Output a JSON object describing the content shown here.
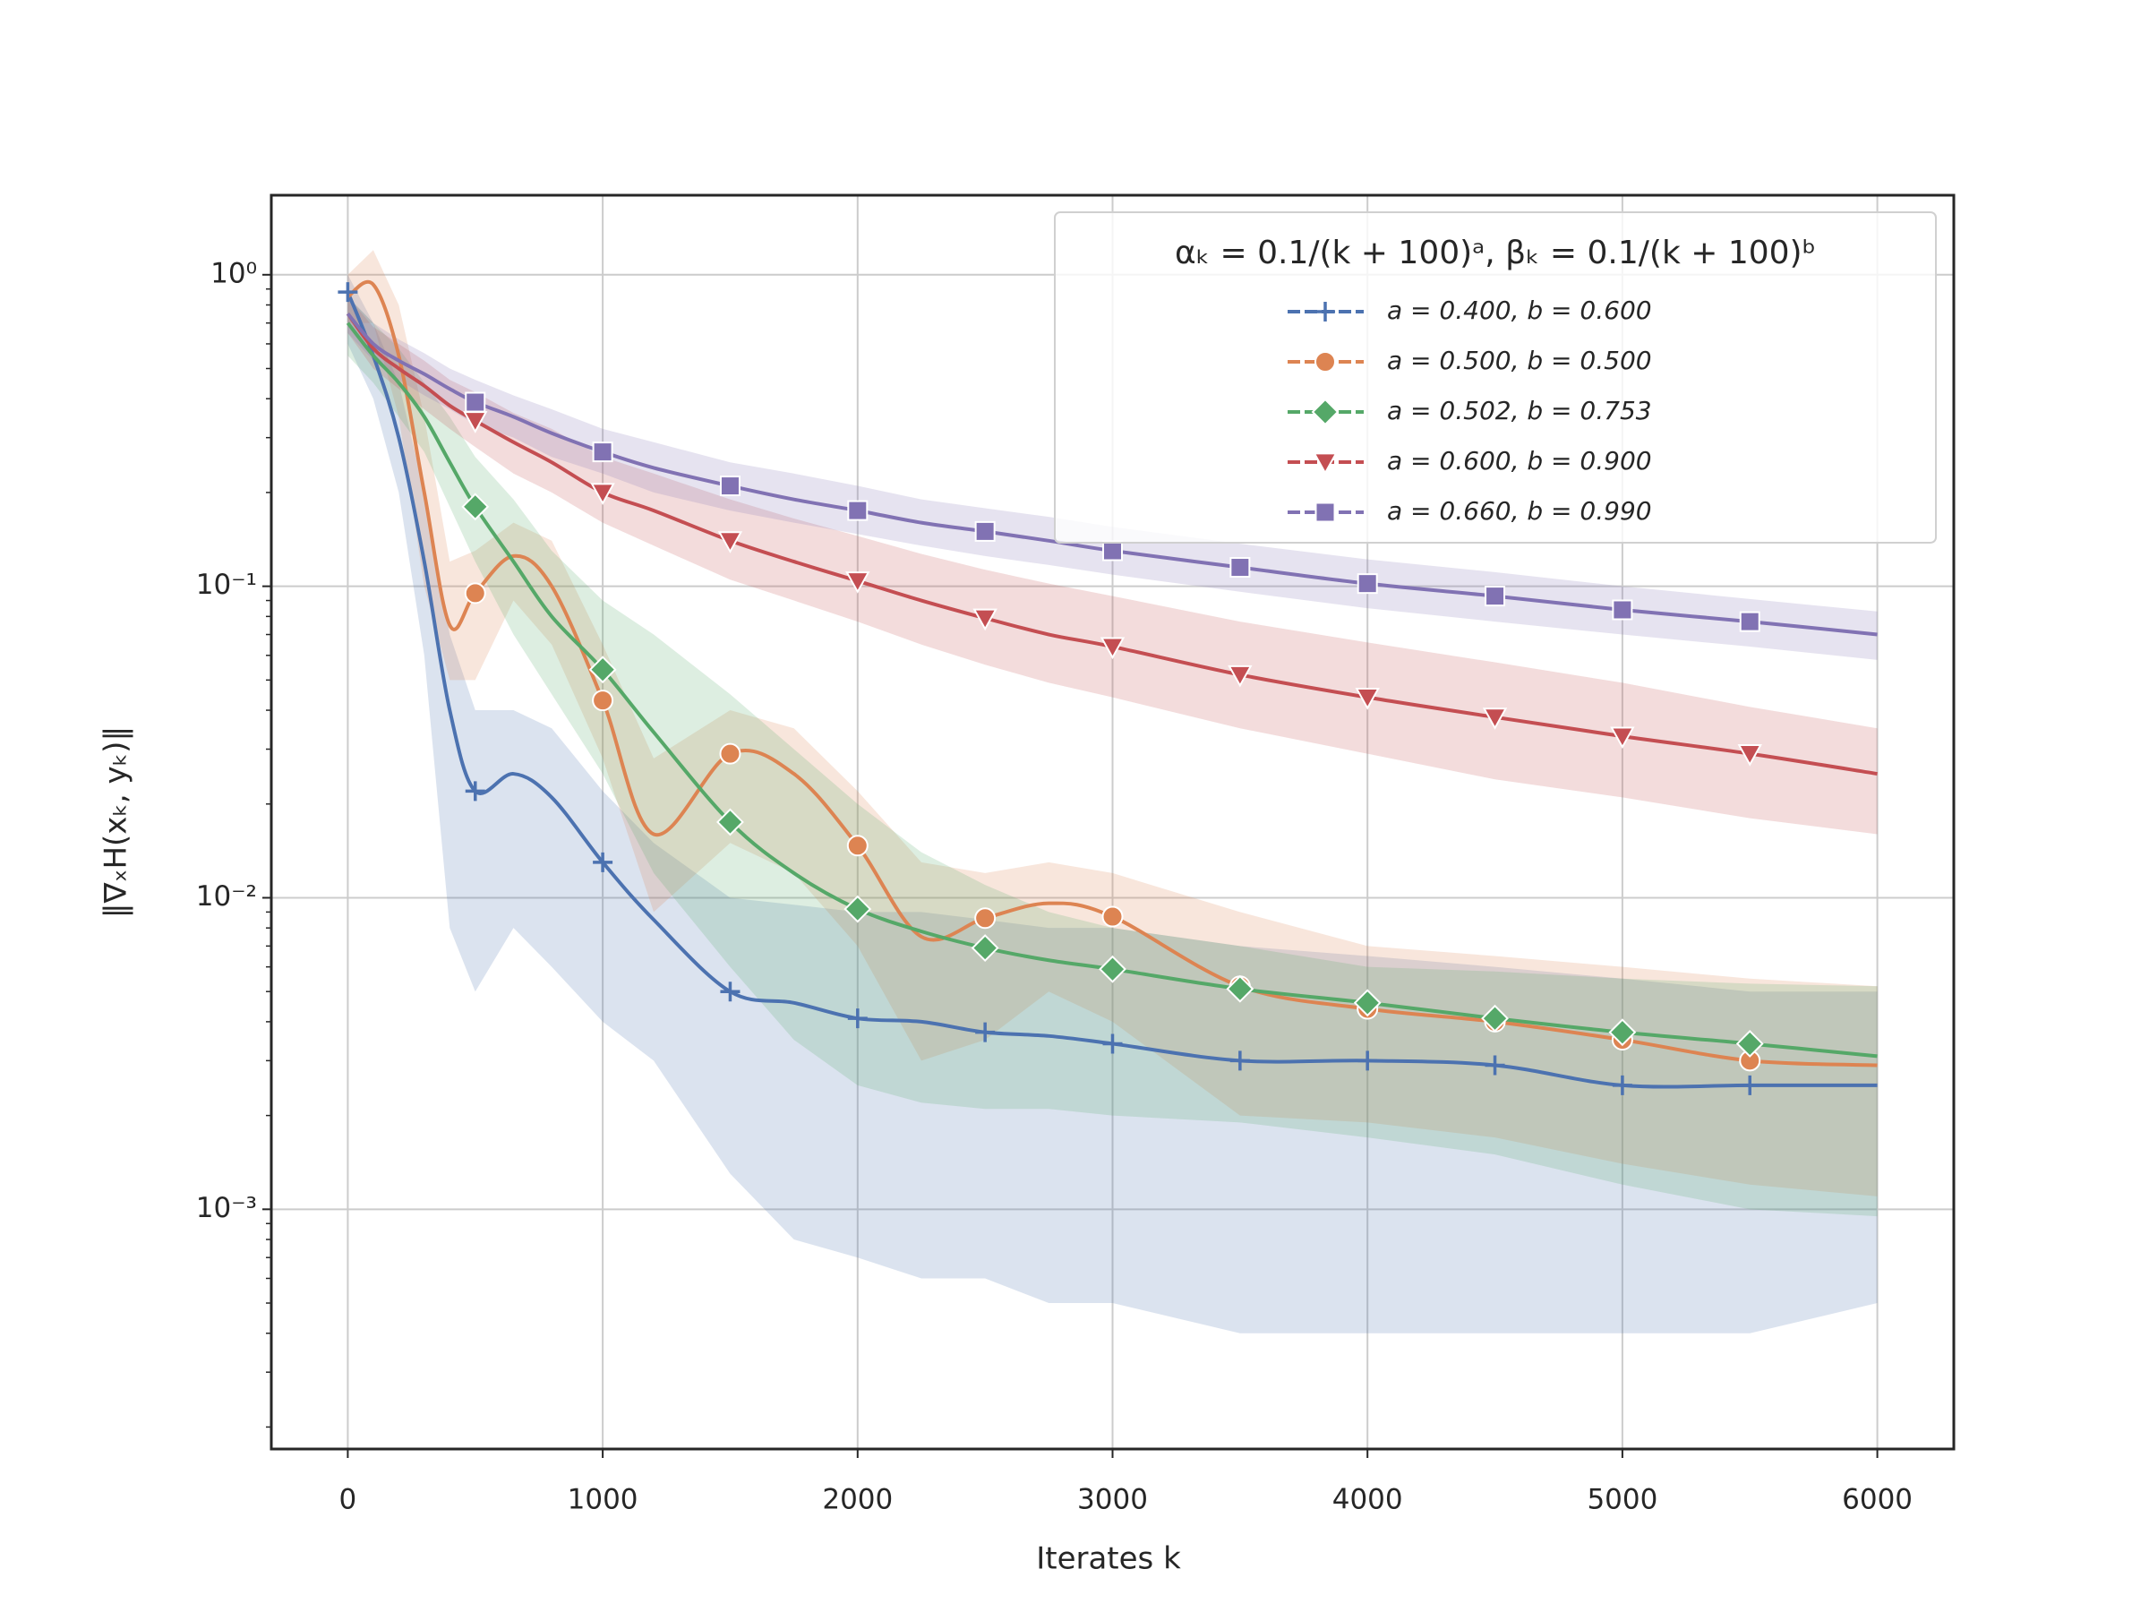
{
  "chart_data": {
    "type": "line",
    "xlabel": "Iterates k",
    "ylabel": "‖∇ₓH(xₖ, yₖ)‖",
    "log_y": true,
    "grid": true,
    "legend_title": "αₖ = 0.1/(k + 100)ᵃ, βₖ = 0.1/(k + 100)ᵇ",
    "legend_position": "upper right",
    "xlim": [
      -300,
      6300
    ],
    "ylim": [
      0.00017,
      1.8
    ],
    "xticks": [
      0,
      1000,
      2000,
      3000,
      4000,
      5000,
      6000
    ],
    "yticks": [
      {
        "value": 0.001,
        "label": "10⁻³"
      },
      {
        "value": 0.01,
        "label": "10⁻²"
      },
      {
        "value": 0.1,
        "label": "10⁻¹"
      },
      {
        "value": 1,
        "label": "10⁰"
      }
    ],
    "x": [
      0,
      100,
      200,
      300,
      400,
      500,
      650,
      800,
      1000,
      1200,
      1500,
      1750,
      2000,
      2250,
      2500,
      2750,
      3000,
      3500,
      4000,
      4500,
      5000,
      5500,
      6000
    ],
    "series": [
      {
        "name": "a = 0.400, b = 0.600",
        "color": "#4c72b0",
        "marker": "plus",
        "values": [
          0.88,
          0.55,
          0.3,
          0.12,
          0.04,
          0.022,
          0.025,
          0.021,
          0.013,
          0.0085,
          0.005,
          0.0046,
          0.0041,
          0.004,
          0.0037,
          0.0036,
          0.0034,
          0.003,
          0.003,
          0.0029,
          0.0025,
          0.0025,
          0.0025
        ],
        "lower": [
          0.6,
          0.4,
          0.2,
          0.06,
          0.008,
          0.005,
          0.008,
          0.006,
          0.004,
          0.003,
          0.0013,
          0.0008,
          0.0007,
          0.0006,
          0.0006,
          0.0005,
          0.0005,
          0.0004,
          0.0004,
          0.0004,
          0.0004,
          0.0004,
          0.0005
        ],
        "upper": [
          1,
          0.7,
          0.45,
          0.2,
          0.07,
          0.04,
          0.04,
          0.035,
          0.022,
          0.015,
          0.01,
          0.0095,
          0.009,
          0.009,
          0.0085,
          0.008,
          0.008,
          0.007,
          0.0065,
          0.006,
          0.0055,
          0.005,
          0.005
        ]
      },
      {
        "name": "a = 0.500, b = 0.500",
        "color": "#dd8452",
        "marker": "circle",
        "values": [
          0.85,
          0.93,
          0.55,
          0.2,
          0.075,
          0.095,
          0.125,
          0.1,
          0.043,
          0.016,
          0.029,
          0.025,
          0.0147,
          0.0075,
          0.0086,
          0.0096,
          0.0087,
          0.0052,
          0.0044,
          0.004,
          0.0035,
          0.003,
          0.0029
        ],
        "lower": [
          0.7,
          0.7,
          0.35,
          0.1,
          0.05,
          0.05,
          0.09,
          0.065,
          0.028,
          0.009,
          0.015,
          0.012,
          0.007,
          0.003,
          0.0035,
          0.005,
          0.004,
          0.002,
          0.0019,
          0.0017,
          0.0014,
          0.0012,
          0.0011
        ],
        "upper": [
          1,
          1.2,
          0.8,
          0.35,
          0.12,
          0.13,
          0.16,
          0.14,
          0.065,
          0.028,
          0.04,
          0.035,
          0.022,
          0.013,
          0.012,
          0.013,
          0.012,
          0.009,
          0.007,
          0.0065,
          0.006,
          0.0055,
          0.0052
        ]
      },
      {
        "name": "a = 0.502, b = 0.753",
        "color": "#55a868",
        "marker": "diamond",
        "values": [
          0.7,
          0.55,
          0.45,
          0.35,
          0.25,
          0.18,
          0.12,
          0.08,
          0.054,
          0.034,
          0.0175,
          0.012,
          0.0092,
          0.0078,
          0.0069,
          0.0063,
          0.0059,
          0.0051,
          0.0046,
          0.0041,
          0.0037,
          0.0034,
          0.0031
        ],
        "lower": [
          0.55,
          0.45,
          0.35,
          0.27,
          0.18,
          0.12,
          0.07,
          0.045,
          0.025,
          0.012,
          0.006,
          0.0035,
          0.0025,
          0.0022,
          0.0021,
          0.0021,
          0.002,
          0.0019,
          0.0017,
          0.0015,
          0.0012,
          0.001,
          0.00095
        ],
        "upper": [
          0.85,
          0.7,
          0.58,
          0.45,
          0.35,
          0.26,
          0.19,
          0.13,
          0.09,
          0.07,
          0.045,
          0.03,
          0.02,
          0.014,
          0.011,
          0.009,
          0.008,
          0.007,
          0.006,
          0.0058,
          0.0055,
          0.0053,
          0.0052
        ]
      },
      {
        "name": "a = 0.600, b = 0.900",
        "color": "#c44e52",
        "marker": "triangle",
        "values": [
          0.75,
          0.58,
          0.5,
          0.44,
          0.38,
          0.34,
          0.29,
          0.25,
          0.2,
          0.175,
          0.14,
          0.12,
          0.104,
          0.09,
          0.079,
          0.07,
          0.064,
          0.052,
          0.044,
          0.038,
          0.033,
          0.029,
          0.025
        ],
        "lower": [
          0.65,
          0.5,
          0.43,
          0.37,
          0.32,
          0.28,
          0.23,
          0.2,
          0.16,
          0.135,
          0.105,
          0.09,
          0.077,
          0.065,
          0.056,
          0.049,
          0.044,
          0.035,
          0.029,
          0.024,
          0.021,
          0.018,
          0.016
        ],
        "upper": [
          0.85,
          0.68,
          0.6,
          0.53,
          0.46,
          0.42,
          0.36,
          0.32,
          0.26,
          0.23,
          0.19,
          0.165,
          0.145,
          0.127,
          0.113,
          0.102,
          0.093,
          0.077,
          0.066,
          0.057,
          0.049,
          0.041,
          0.035
        ]
      },
      {
        "name": "a = 0.660, b = 0.990",
        "color": "#8172b3",
        "marker": "square",
        "values": [
          0.75,
          0.6,
          0.53,
          0.48,
          0.43,
          0.39,
          0.35,
          0.31,
          0.27,
          0.24,
          0.21,
          0.19,
          0.175,
          0.16,
          0.15,
          0.14,
          0.13,
          0.115,
          0.102,
          0.093,
          0.084,
          0.077,
          0.07
        ],
        "lower": [
          0.65,
          0.53,
          0.46,
          0.41,
          0.37,
          0.33,
          0.3,
          0.26,
          0.23,
          0.2,
          0.175,
          0.16,
          0.147,
          0.135,
          0.125,
          0.117,
          0.109,
          0.096,
          0.085,
          0.077,
          0.07,
          0.064,
          0.058
        ],
        "upper": [
          0.85,
          0.7,
          0.62,
          0.56,
          0.5,
          0.46,
          0.41,
          0.37,
          0.32,
          0.29,
          0.25,
          0.23,
          0.21,
          0.19,
          0.178,
          0.167,
          0.155,
          0.137,
          0.122,
          0.111,
          0.1,
          0.091,
          0.083
        ]
      }
    ]
  }
}
